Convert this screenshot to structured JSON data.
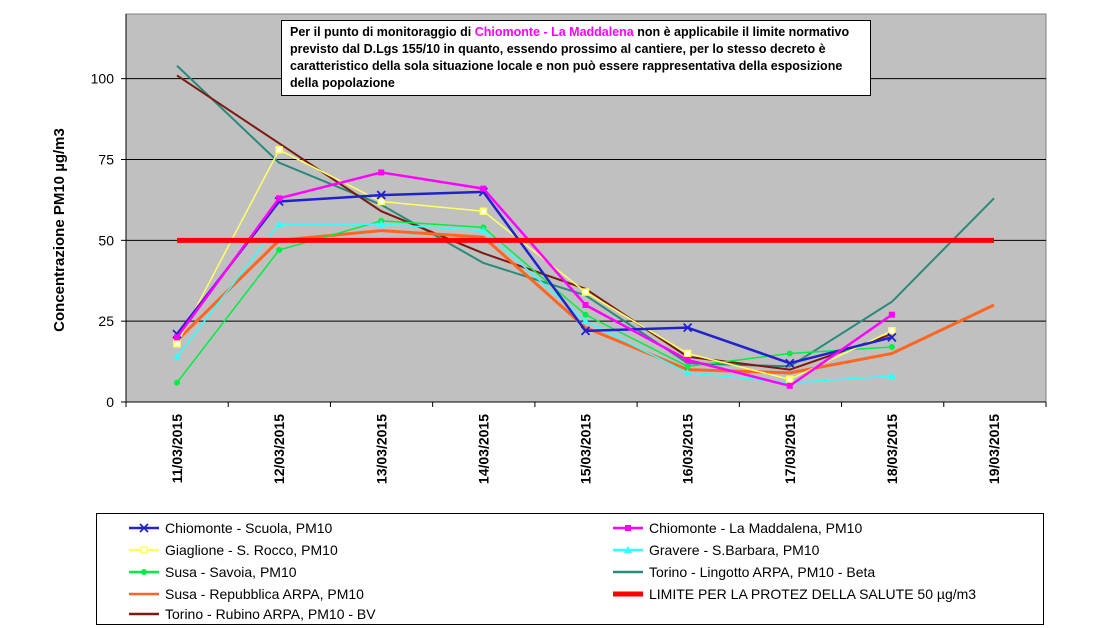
{
  "note": {
    "prefix": "Per il punto di monitoraggio di ",
    "highlight": "Chiomonte - La Maddalena",
    "suffix": " non è applicabile il limite normativo previsto dal D.Lgs 155/10 in quanto, essendo prossimo al cantiere, per lo stesso decreto è caratteristico della sola situazione locale e non può essere rappresentativa della esposizione della popolazione"
  },
  "chart_data": {
    "type": "line",
    "ylabel": "Concentrazione PM10 µg/m3",
    "xlabel": "",
    "ylim": [
      0,
      120
    ],
    "yticks": [
      0,
      25,
      50,
      75,
      100
    ],
    "grid": true,
    "legend_position": "bottom",
    "categories": [
      "11/03/2015",
      "12/03/2015",
      "13/03/2015",
      "14/03/2015",
      "15/03/2015",
      "16/03/2015",
      "17/03/2015",
      "18/03/2015",
      "19/03/2015"
    ],
    "series": [
      {
        "name": "Chiomonte - Scuola, PM10",
        "color": "#2222cc",
        "marker": "x",
        "values": [
          21,
          62,
          64,
          65,
          22,
          23,
          12,
          20,
          null
        ]
      },
      {
        "name": "Chiomonte - La Maddalena, PM10",
        "color": "#ff00ff",
        "marker": "square",
        "values": [
          20,
          63,
          71,
          66,
          30,
          13,
          5,
          27,
          null
        ]
      },
      {
        "name": "Giaglione - S. Rocco, PM10",
        "color": "#ffff66",
        "marker": "square-open",
        "values": [
          18,
          78,
          62,
          59,
          34,
          15,
          7,
          22,
          null
        ]
      },
      {
        "name": "Gravere - S.Barbara, PM10",
        "color": "#33ffff",
        "marker": "triangle",
        "values": [
          14,
          55,
          55,
          53,
          25,
          9,
          6,
          8,
          null
        ]
      },
      {
        "name": "Susa - Savoia, PM10",
        "color": "#00ee44",
        "marker": "circle",
        "values": [
          6,
          47,
          56,
          54,
          27,
          11,
          15,
          17,
          null
        ]
      },
      {
        "name": "Torino - Lingotto ARPA, PM10 - Beta",
        "color": "#2a8a7a",
        "marker": "none",
        "values": [
          104,
          74,
          61,
          43,
          33,
          12,
          11,
          31,
          63
        ]
      },
      {
        "name": "Susa - Repubblica ARPA, PM10",
        "color": "#ff6622",
        "marker": "none",
        "values": [
          19,
          50,
          53,
          51,
          23,
          10,
          9,
          15,
          30
        ]
      },
      {
        "name": "LIMITE PER LA PROTEZ DELLA SALUTE 50 µg/m3",
        "color": "#ff0000",
        "marker": "none",
        "values": [
          50,
          50,
          50,
          50,
          50,
          50,
          50,
          50,
          50
        ]
      },
      {
        "name": "Torino - Rubino ARPA, PM10 - BV",
        "color": "#7a1a10",
        "marker": "none",
        "values": [
          101,
          80,
          59,
          46,
          35,
          14,
          10,
          21,
          null
        ]
      }
    ]
  }
}
